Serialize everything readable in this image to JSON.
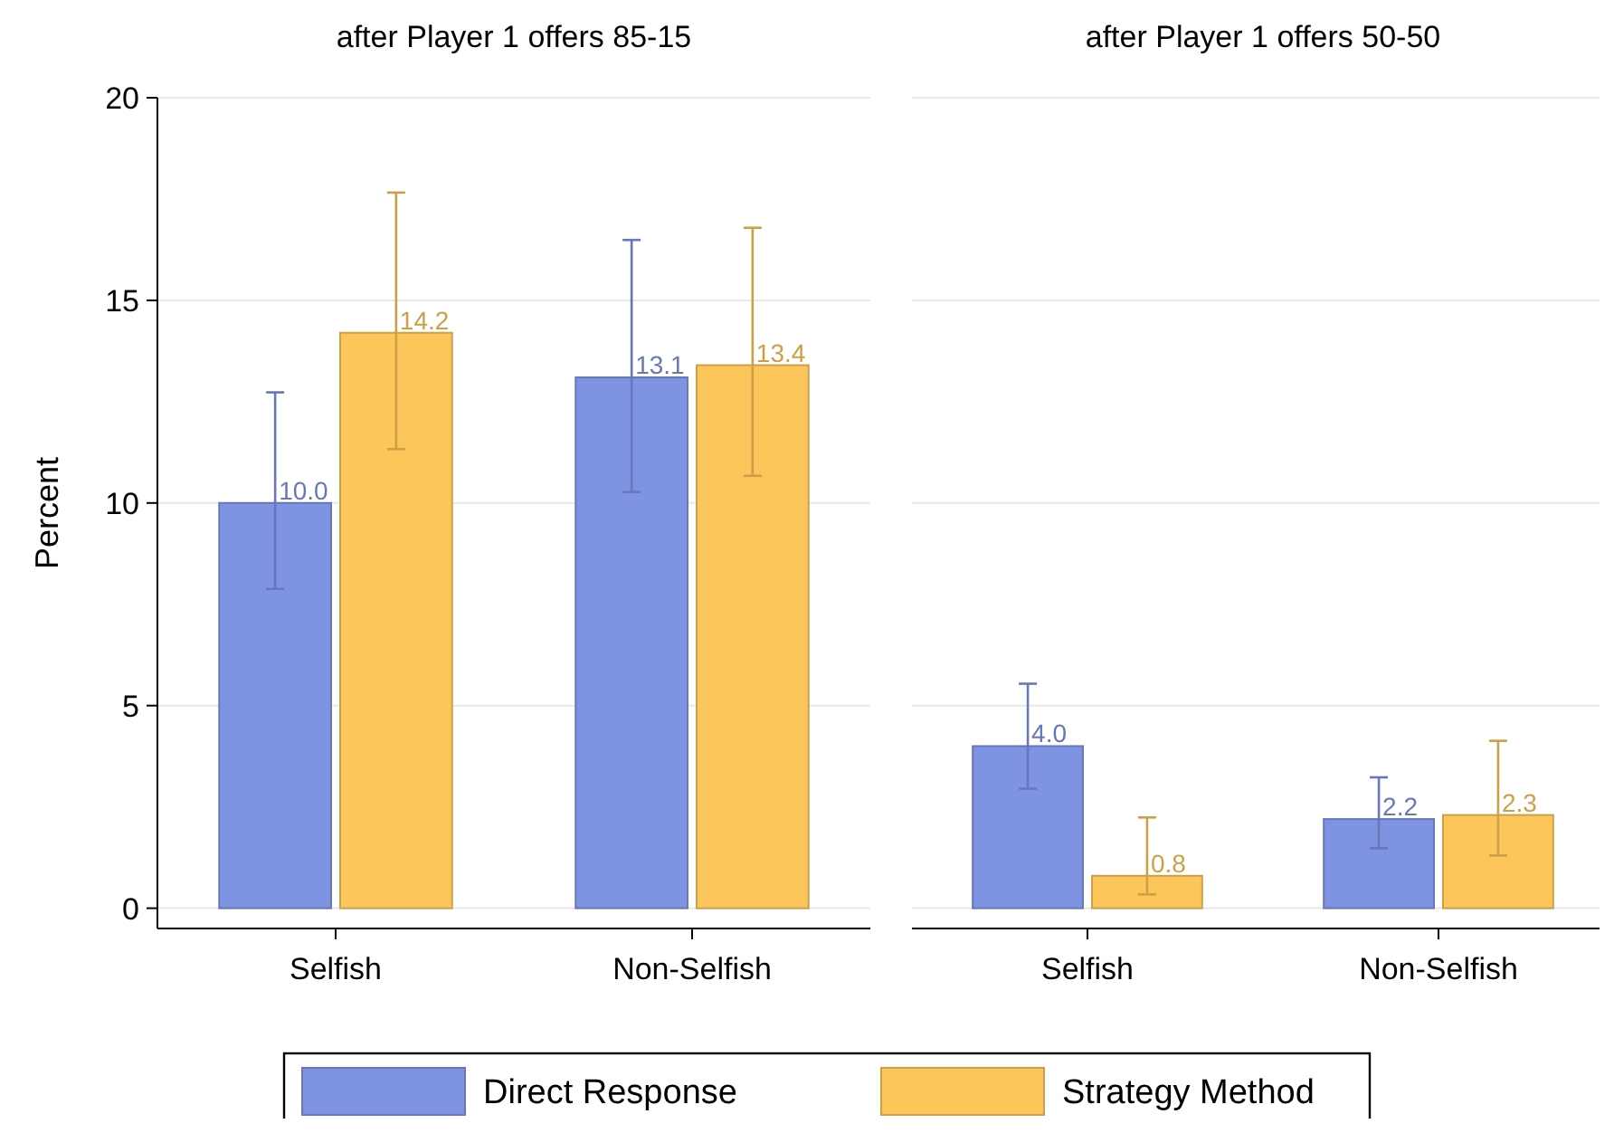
{
  "chart_data": [
    {
      "type": "bar",
      "title": "after Player 1 offers 85-15",
      "ylabel": "Percent",
      "categories": [
        "Selfish",
        "Non-Selfish"
      ],
      "ylim": [
        -0.5,
        20
      ],
      "yticks": [
        0,
        5,
        10,
        15,
        20
      ],
      "grid": "y",
      "legend": "bottom",
      "series": [
        {
          "name": "Direct Response",
          "color": "#7f93e3",
          "values": [
            10.0,
            13.1
          ],
          "value_labels": [
            "10.0",
            "13.1"
          ],
          "errors": [
            [
              7.88,
              12.73
            ],
            [
              10.27,
              16.49
            ]
          ]
        },
        {
          "name": "Strategy Method",
          "color": "#fcc65a",
          "values": [
            14.2,
            13.4
          ],
          "value_labels": [
            "14.2",
            "13.4"
          ],
          "errors": [
            [
              11.33,
              17.66
            ],
            [
              10.67,
              16.79
            ]
          ]
        }
      ]
    },
    {
      "type": "bar",
      "title": "after Player 1 offers 50-50",
      "categories": [
        "Selfish",
        "Non-Selfish"
      ],
      "ylim": [
        -0.5,
        20
      ],
      "yticks": [
        0,
        5,
        10,
        15,
        20
      ],
      "grid": "y",
      "tick_labels": "x",
      "series": [
        {
          "name": "Direct Response",
          "color": "#7f93e3",
          "values": [
            4.0,
            2.2
          ],
          "value_labels": [
            "4.0",
            "2.2"
          ],
          "errors": [
            [
              2.95,
              5.54
            ],
            [
              1.48,
              3.23
            ]
          ]
        },
        {
          "name": "Strategy Method",
          "color": "#fcc65a",
          "values": [
            0.8,
            2.3
          ],
          "value_labels": [
            "0.8",
            "2.3"
          ],
          "errors": [
            [
              0.34,
              2.24
            ],
            [
              1.3,
              4.13
            ]
          ]
        }
      ]
    }
  ]
}
